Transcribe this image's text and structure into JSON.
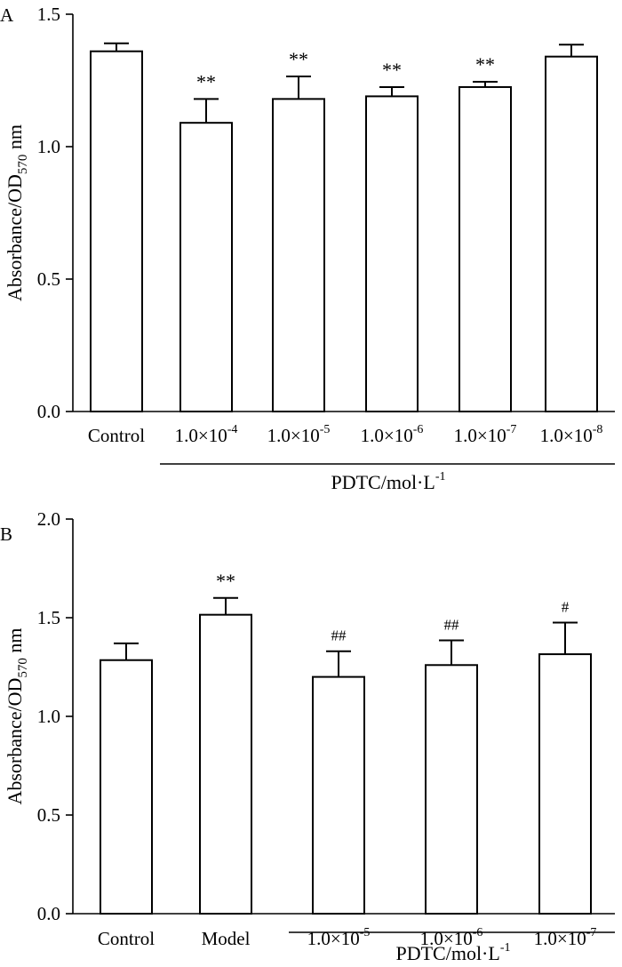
{
  "chart_data": [
    {
      "type": "bar",
      "panel_label": "A",
      "ylabel": "Absorbance/OD570 nm",
      "ylabel_main": "Absorbance/OD",
      "ylabel_sub": "570",
      "ylabel_unit": " nm",
      "ylim": [
        0,
        1.5
      ],
      "yticks": [
        "0.0",
        "0.5",
        "1.0",
        "1.5"
      ],
      "ytick_values": [
        0,
        0.5,
        1.0,
        1.5
      ],
      "categories": [
        "Control",
        "1.0×10-4",
        "1.0×10-5",
        "1.0×10-6",
        "1.0×10-7",
        "1.0×10-8"
      ],
      "category_labels": [
        {
          "base": "Control",
          "sup": ""
        },
        {
          "base": "1.0×10",
          "sup": "-4"
        },
        {
          "base": "1.0×10",
          "sup": "-5"
        },
        {
          "base": "1.0×10",
          "sup": "-6"
        },
        {
          "base": "1.0×10",
          "sup": "-7"
        },
        {
          "base": "1.0×10",
          "sup": "-8"
        }
      ],
      "values": [
        1.36,
        1.09,
        1.18,
        1.19,
        1.225,
        1.34
      ],
      "errors": [
        0.03,
        0.09,
        0.085,
        0.035,
        0.02,
        0.045
      ],
      "annotations": [
        "",
        "**",
        "**",
        "**",
        "**",
        ""
      ],
      "group_label": "PDTC/mol·L-1",
      "group_label_base": "PDTC/mol·L",
      "group_label_sup": "-1",
      "group_start_index": 1,
      "grid": false,
      "legend": "none"
    },
    {
      "type": "bar",
      "panel_label": "B",
      "ylabel": "Absorbance/OD570 nm",
      "ylabel_main": "Absorbance/OD",
      "ylabel_sub": "570",
      "ylabel_unit": " nm",
      "ylim": [
        0,
        2.0
      ],
      "yticks": [
        "0.0",
        "0.5",
        "1.0",
        "1.5",
        "2.0"
      ],
      "ytick_values": [
        0,
        0.5,
        1.0,
        1.5,
        2.0
      ],
      "categories": [
        "Control",
        "Model",
        "1.0×10-5",
        "1.0×10-6",
        "1.0×10-7"
      ],
      "category_labels": [
        {
          "base": "Control",
          "sup": ""
        },
        {
          "base": "Model",
          "sup": ""
        },
        {
          "base": "1.0×10",
          "sup": "-5"
        },
        {
          "base": "1.0×10",
          "sup": "-6"
        },
        {
          "base": "1.0×10",
          "sup": "-7"
        }
      ],
      "values": [
        1.285,
        1.515,
        1.2,
        1.26,
        1.315
      ],
      "errors": [
        0.085,
        0.085,
        0.13,
        0.125,
        0.16
      ],
      "annotations": [
        "",
        "**",
        "##",
        "##",
        "#"
      ],
      "group_label": "PDTC/mol·L-1",
      "group_label_base": "PDTC/mol·L",
      "group_label_sup": "-1",
      "group_start_index": 2,
      "grid": false,
      "legend": "none"
    }
  ]
}
